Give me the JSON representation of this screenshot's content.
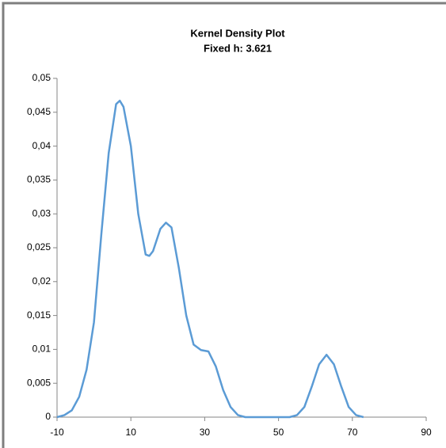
{
  "chart_data": {
    "type": "line",
    "title": "Kernel Density Plot",
    "subtitle": "Fixed h: 3.621",
    "x": [
      -10,
      -8,
      -6,
      -4,
      -2,
      0,
      2,
      4,
      6,
      7,
      8,
      10,
      12,
      14,
      15,
      16,
      18,
      19.5,
      21,
      23,
      25,
      27,
      29,
      31,
      33,
      35,
      37,
      39,
      41,
      45,
      50,
      53,
      55,
      57,
      59,
      61,
      63,
      65,
      67,
      69,
      71,
      73
    ],
    "series": [
      {
        "color": "#5b9bd5",
        "values": [
          0,
          0.0003,
          0.001,
          0.003,
          0.007,
          0.014,
          0.027,
          0.039,
          0.0462,
          0.0467,
          0.0458,
          0.04,
          0.03,
          0.024,
          0.0238,
          0.0245,
          0.0278,
          0.0287,
          0.028,
          0.022,
          0.015,
          0.0107,
          0.0099,
          0.0097,
          0.0075,
          0.004,
          0.0015,
          0.0003,
          0,
          0,
          0,
          0,
          0.0003,
          0.0015,
          0.0045,
          0.0078,
          0.0092,
          0.0078,
          0.0045,
          0.0015,
          0.0003,
          0
        ]
      }
    ],
    "xlim": [
      -10,
      90
    ],
    "xticks": [
      -10,
      10,
      30,
      50,
      70,
      90
    ],
    "ylim": [
      0,
      0.05
    ],
    "yticks": [
      0,
      {
        "value": 0.005,
        "label": "0,005"
      },
      {
        "value": 0.01,
        "label": "0,01"
      },
      {
        "value": 0.015,
        "label": "0,015"
      },
      {
        "value": 0.02,
        "label": "0,02"
      },
      {
        "value": 0.025,
        "label": "0,025"
      },
      {
        "value": 0.03,
        "label": "0,03"
      },
      {
        "value": 0.035,
        "label": "0,035"
      },
      {
        "value": 0.04,
        "label": "0,04"
      },
      {
        "value": 0.045,
        "label": "0,045"
      },
      {
        "value": 0.05,
        "label": "0,05"
      }
    ]
  }
}
